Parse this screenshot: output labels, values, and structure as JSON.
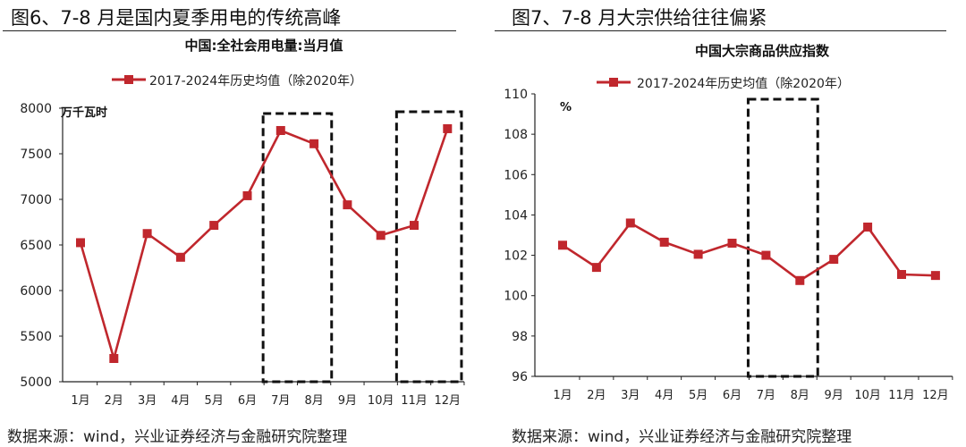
{
  "colors": {
    "series": "#c0272d",
    "box": "#111111",
    "axis": "#222222"
  },
  "charts": [
    {
      "figure_title": "图6、7-8 月是国内夏季用电的传统高峰",
      "source": "数据来源：wind，兴业证券经济与金融研究院整理"
    },
    {
      "figure_title": "图7、7-8 月大宗供给往往偏紧",
      "source": "数据来源：wind，兴业证券经济与金融研究院整理"
    }
  ],
  "chart_data": [
    {
      "type": "line",
      "title": "中国:全社会用电量:当月值",
      "unit": "万千瓦时",
      "categories": [
        "1月",
        "2月",
        "3月",
        "4月",
        "5月",
        "6月",
        "7月",
        "8月",
        "9月",
        "10月",
        "11月",
        "12月"
      ],
      "series": [
        {
          "name": "2017-2024年历史均值（除2020年）",
          "values": [
            6525,
            5255,
            6625,
            6365,
            6715,
            7040,
            7755,
            7610,
            6940,
            6605,
            6715,
            7775
          ]
        }
      ],
      "ylim": [
        5000,
        8000
      ],
      "yticks": [
        "5000",
        "5500",
        "6000",
        "6500",
        "7000",
        "7500",
        "8000"
      ],
      "highlight_ranges": [
        [
          "7月",
          "8月"
        ],
        [
          "11月",
          "12月"
        ]
      ],
      "legend": "top",
      "grid": false
    },
    {
      "type": "line",
      "title": "中国大宗商品供应指数",
      "unit": "%",
      "categories": [
        "1月",
        "2月",
        "3月",
        "4月",
        "5月",
        "6月",
        "7月",
        "8月",
        "9月",
        "10月",
        "11月",
        "12月"
      ],
      "series": [
        {
          "name": "2017-2024年历史均值（除2020年）",
          "values": [
            102.5,
            101.4,
            103.6,
            102.65,
            102.05,
            102.6,
            102.0,
            100.75,
            101.8,
            103.4,
            101.05,
            101.0
          ]
        }
      ],
      "ylim": [
        96,
        110
      ],
      "yticks": [
        "96",
        "98",
        "100",
        "102",
        "104",
        "106",
        "108",
        "110"
      ],
      "highlight_ranges": [
        [
          "7月",
          "8月"
        ]
      ],
      "legend": "top",
      "grid": false
    }
  ]
}
